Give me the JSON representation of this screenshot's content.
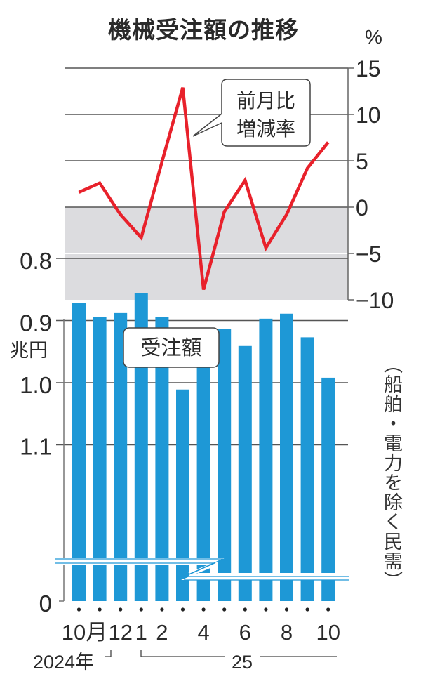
{
  "title": "機械受注額の推移",
  "colors": {
    "line": "#e8212b",
    "bar": "#1e98d6",
    "grid": "#555555",
    "negative_band": "#dcdcdf",
    "text": "#2a2a2a"
  },
  "top_chart": {
    "unit_label": "%",
    "callout_line1": "前月比",
    "callout_line2": "増減率",
    "y_ticks": [
      "15",
      "10",
      "5",
      "0",
      "−5",
      "−10"
    ]
  },
  "bottom_chart": {
    "unit_label": "兆円",
    "callout": "受注額",
    "y_ticks": [
      "1.1",
      "1.0",
      "0.9",
      "0.8",
      "0"
    ],
    "note_vertical": "（船舶・電力を除く民需）"
  },
  "x_axis": {
    "labels": [
      "10月",
      "12",
      "1",
      "2",
      "4",
      "6",
      "8",
      "10"
    ],
    "year_2024": "2024年",
    "year_2025": "25"
  },
  "chart_data": [
    {
      "type": "line",
      "title": "前月比増減率",
      "xlabel": "",
      "ylabel": "%",
      "ylim": [
        -10,
        15
      ],
      "yticks": [
        15,
        10,
        5,
        0,
        -5,
        -10
      ],
      "grid": true,
      "categories": [
        "2024-10",
        "2024-11",
        "2024-12",
        "2025-01",
        "2025-02",
        "2025-03",
        "2025-04",
        "2025-05",
        "2025-06",
        "2025-07",
        "2025-08",
        "2025-09",
        "2025-10"
      ],
      "series": [
        {
          "name": "前月比増減率",
          "values": [
            1.6,
            2.6,
            -0.8,
            -3.3,
            4.9,
            12.9,
            -8.9,
            -0.5,
            2.9,
            -4.4,
            -0.8,
            4.2,
            7.0
          ]
        }
      ],
      "annotations": [
        "shaded region below 0"
      ]
    },
    {
      "type": "bar",
      "title": "受注額",
      "xlabel": "",
      "ylabel": "兆円",
      "ylim": [
        0,
        1.1
      ],
      "yticks": [
        1.1,
        1.0,
        0.9,
        0.8,
        0
      ],
      "axis_break": "between 0 and 0.8",
      "grid": true,
      "categories": [
        "2024-10",
        "2024-11",
        "2024-12",
        "2025-01",
        "2025-02",
        "2025-03",
        "2025-04",
        "2025-05",
        "2025-06",
        "2025-07",
        "2025-08",
        "2025-09",
        "2025-10"
      ],
      "series": [
        {
          "name": "受注額（船舶・電力を除く民需）",
          "values": [
            0.872,
            0.894,
            0.888,
            0.856,
            0.894,
            1.011,
            0.918,
            0.913,
            0.941,
            0.897,
            0.889,
            0.927,
            0.992
          ]
        }
      ]
    }
  ]
}
